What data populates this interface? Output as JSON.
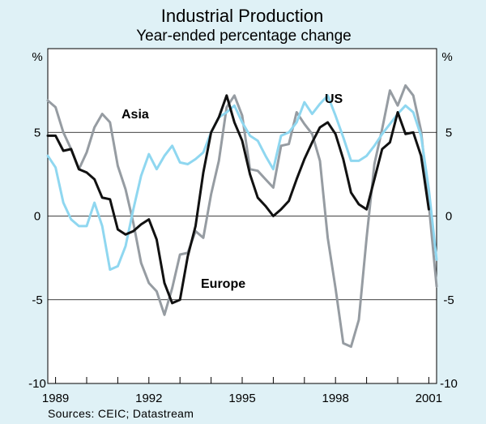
{
  "chart_data": {
    "type": "line",
    "title": "Industrial Production",
    "subtitle": "Year-ended percentage change",
    "unit_left": "%",
    "unit_right": "%",
    "ylim": [
      -10,
      10
    ],
    "yticks": [
      -10,
      -5,
      0,
      5
    ],
    "ytick_labels": [
      "-10",
      "-5",
      "0",
      "5"
    ],
    "xlim": [
      1988.75,
      2001.25
    ],
    "xticks": [
      1989,
      1992,
      1995,
      1998,
      2001
    ],
    "xtick_labels": [
      "1989",
      "1992",
      "1995",
      "1998",
      "2001"
    ],
    "source": "Sources: CEIC; Datastream",
    "series": [
      {
        "name": "Asia",
        "color": "#969ca2",
        "points": [
          [
            1988.75,
            6.9
          ],
          [
            1989.0,
            6.5
          ],
          [
            1989.25,
            5.0
          ],
          [
            1989.5,
            4.0
          ],
          [
            1989.75,
            2.8
          ],
          [
            1990.0,
            3.8
          ],
          [
            1990.25,
            5.3
          ],
          [
            1990.5,
            6.1
          ],
          [
            1990.75,
            5.6
          ],
          [
            1991.0,
            3.0
          ],
          [
            1991.25,
            1.6
          ],
          [
            1991.5,
            -0.4
          ],
          [
            1991.75,
            -2.8
          ],
          [
            1992.0,
            -4.0
          ],
          [
            1992.25,
            -4.5
          ],
          [
            1992.5,
            -5.9
          ],
          [
            1992.75,
            -4.3
          ],
          [
            1993.0,
            -2.3
          ],
          [
            1993.25,
            -2.2
          ],
          [
            1993.5,
            -0.9
          ],
          [
            1993.75,
            -1.3
          ],
          [
            1994.0,
            1.3
          ],
          [
            1994.25,
            3.3
          ],
          [
            1994.5,
            6.5
          ],
          [
            1994.75,
            7.2
          ],
          [
            1995.0,
            6.0
          ],
          [
            1995.25,
            2.8
          ],
          [
            1995.5,
            2.7
          ],
          [
            1995.75,
            2.2
          ],
          [
            1996.0,
            1.7
          ],
          [
            1996.25,
            4.2
          ],
          [
            1996.5,
            4.3
          ],
          [
            1996.75,
            6.2
          ],
          [
            1997.0,
            5.5
          ],
          [
            1997.25,
            4.9
          ],
          [
            1997.5,
            3.3
          ],
          [
            1997.75,
            -1.3
          ],
          [
            1998.0,
            -4.3
          ],
          [
            1998.25,
            -7.6
          ],
          [
            1998.5,
            -7.8
          ],
          [
            1998.75,
            -6.2
          ],
          [
            1999.0,
            -1.3
          ],
          [
            1999.25,
            3.1
          ],
          [
            1999.5,
            5.2
          ],
          [
            1999.75,
            7.5
          ],
          [
            2000.0,
            6.6
          ],
          [
            2000.25,
            7.8
          ],
          [
            2000.5,
            7.2
          ],
          [
            2000.75,
            5.1
          ],
          [
            2001.0,
            0.7
          ],
          [
            2001.25,
            -4.2
          ]
        ]
      },
      {
        "name": "US",
        "color": "#8fd7f0",
        "points": [
          [
            1988.75,
            3.6
          ],
          [
            1989.0,
            2.9
          ],
          [
            1989.25,
            0.8
          ],
          [
            1989.5,
            -0.2
          ],
          [
            1989.75,
            -0.6
          ],
          [
            1990.0,
            -0.6
          ],
          [
            1990.25,
            0.8
          ],
          [
            1990.5,
            -0.6
          ],
          [
            1990.75,
            -3.2
          ],
          [
            1991.0,
            -3.0
          ],
          [
            1991.25,
            -1.8
          ],
          [
            1991.5,
            0.4
          ],
          [
            1991.75,
            2.4
          ],
          [
            1992.0,
            3.7
          ],
          [
            1992.25,
            2.8
          ],
          [
            1992.5,
            3.6
          ],
          [
            1992.75,
            4.2
          ],
          [
            1993.0,
            3.2
          ],
          [
            1993.25,
            3.1
          ],
          [
            1993.5,
            3.4
          ],
          [
            1993.75,
            3.8
          ],
          [
            1994.0,
            5.0
          ],
          [
            1994.25,
            5.9
          ],
          [
            1994.5,
            6.2
          ],
          [
            1994.75,
            6.6
          ],
          [
            1995.0,
            5.6
          ],
          [
            1995.25,
            4.8
          ],
          [
            1995.5,
            4.5
          ],
          [
            1995.75,
            3.6
          ],
          [
            1996.0,
            2.8
          ],
          [
            1996.25,
            4.8
          ],
          [
            1996.5,
            5.0
          ],
          [
            1996.75,
            5.6
          ],
          [
            1997.0,
            6.8
          ],
          [
            1997.25,
            6.1
          ],
          [
            1997.5,
            6.7
          ],
          [
            1997.75,
            7.2
          ],
          [
            1998.0,
            6.0
          ],
          [
            1998.25,
            4.7
          ],
          [
            1998.5,
            3.3
          ],
          [
            1998.75,
            3.3
          ],
          [
            1999.0,
            3.6
          ],
          [
            1999.25,
            4.2
          ],
          [
            1999.5,
            4.9
          ],
          [
            1999.75,
            5.5
          ],
          [
            2000.0,
            6.1
          ],
          [
            2000.25,
            6.6
          ],
          [
            2000.5,
            6.2
          ],
          [
            2000.75,
            4.8
          ],
          [
            2001.0,
            1.6
          ],
          [
            2001.25,
            -2.6
          ]
        ]
      },
      {
        "name": "Europe",
        "color": "#111111",
        "points": [
          [
            1988.75,
            4.8
          ],
          [
            1989.0,
            4.8
          ],
          [
            1989.25,
            3.9
          ],
          [
            1989.5,
            4.0
          ],
          [
            1989.75,
            2.8
          ],
          [
            1990.0,
            2.6
          ],
          [
            1990.25,
            2.2
          ],
          [
            1990.5,
            1.1
          ],
          [
            1990.75,
            1.0
          ],
          [
            1991.0,
            -0.8
          ],
          [
            1991.25,
            -1.1
          ],
          [
            1991.5,
            -0.9
          ],
          [
            1991.75,
            -0.5
          ],
          [
            1992.0,
            -0.2
          ],
          [
            1992.25,
            -1.4
          ],
          [
            1992.5,
            -4.0
          ],
          [
            1992.75,
            -5.2
          ],
          [
            1993.0,
            -5.0
          ],
          [
            1993.25,
            -2.4
          ],
          [
            1993.5,
            -0.6
          ],
          [
            1993.75,
            2.6
          ],
          [
            1994.0,
            5.0
          ],
          [
            1994.25,
            5.9
          ],
          [
            1994.5,
            7.2
          ],
          [
            1994.75,
            5.6
          ],
          [
            1995.0,
            4.5
          ],
          [
            1995.25,
            2.5
          ],
          [
            1995.5,
            1.1
          ],
          [
            1995.75,
            0.6
          ],
          [
            1996.0,
            0.0
          ],
          [
            1996.25,
            0.4
          ],
          [
            1996.5,
            0.9
          ],
          [
            1996.75,
            2.2
          ],
          [
            1997.0,
            3.4
          ],
          [
            1997.25,
            4.4
          ],
          [
            1997.5,
            5.3
          ],
          [
            1997.75,
            5.6
          ],
          [
            1998.0,
            4.9
          ],
          [
            1998.25,
            3.4
          ],
          [
            1998.5,
            1.4
          ],
          [
            1998.75,
            0.7
          ],
          [
            1999.0,
            0.4
          ],
          [
            1999.25,
            2.2
          ],
          [
            1999.5,
            4.0
          ],
          [
            1999.75,
            4.4
          ],
          [
            2000.0,
            6.2
          ],
          [
            2000.25,
            4.9
          ],
          [
            2000.5,
            5.0
          ],
          [
            2000.75,
            3.6
          ],
          [
            2001.0,
            0.4
          ]
        ]
      }
    ],
    "series_labels": [
      {
        "name": "Asia",
        "text": "Asia"
      },
      {
        "name": "US",
        "text": "US"
      },
      {
        "name": "Europe",
        "text": "Europe"
      }
    ]
  }
}
